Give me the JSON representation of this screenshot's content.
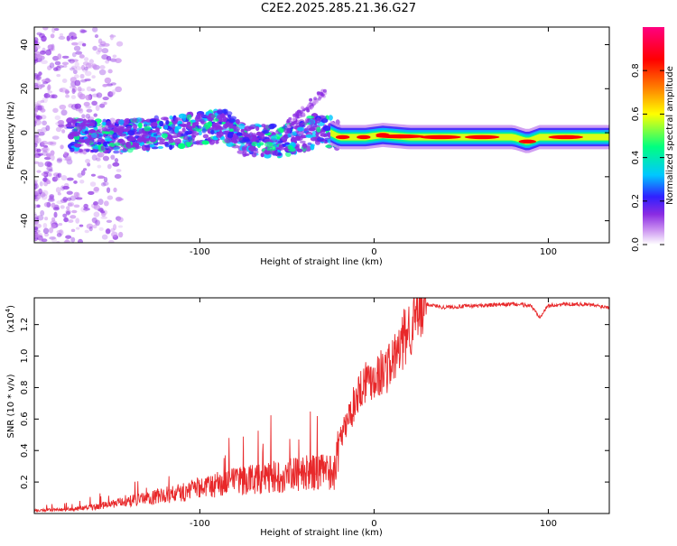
{
  "title": "C2E2.2025.285.21.36.G27",
  "chart_data": [
    {
      "type": "heatmap",
      "xlabel": "Height of straight line (km)",
      "ylabel": "Frequency (Hz)",
      "xlim": [
        -195,
        135
      ],
      "ylim": [
        -50,
        48
      ],
      "x_ticks": [
        -100,
        0,
        100
      ],
      "y_ticks": [
        -40,
        -20,
        0,
        20,
        40
      ],
      "colorbar": {
        "label": "Normalized spectral amplitude",
        "range": [
          0,
          1
        ],
        "ticks": [
          "0.0",
          "0.2",
          "0.4",
          "0.6",
          "0.8"
        ],
        "colors": [
          "#ffffff",
          "#c98ff0",
          "#8a2be2",
          "#3020ff",
          "#00c8ff",
          "#00ff80",
          "#ffff00",
          "#ff8000",
          "#ff0000",
          "#ff0080"
        ]
      },
      "centerline": [
        {
          "x": -195,
          "y": 0
        },
        {
          "x": -150,
          "y": -2
        },
        {
          "x": -120,
          "y": 0
        },
        {
          "x": -100,
          "y": 2
        },
        {
          "x": -85,
          "y": 3
        },
        {
          "x": -75,
          "y": -3
        },
        {
          "x": -55,
          "y": -4
        },
        {
          "x": -40,
          "y": -1
        },
        {
          "x": -30,
          "y": 2
        },
        {
          "x": -20,
          "y": -2
        },
        {
          "x": -5,
          "y": -2
        },
        {
          "x": 5,
          "y": -1
        },
        {
          "x": 20,
          "y": -2
        },
        {
          "x": 80,
          "y": -2
        },
        {
          "x": 88,
          "y": -4
        },
        {
          "x": 95,
          "y": -2
        },
        {
          "x": 135,
          "y": -2
        }
      ]
    },
    {
      "type": "line",
      "xlabel": "Height of straight line (km)",
      "ylabel": "SNR (10 * v/v)",
      "y_multiplier": "(x10",
      "y_multiplier_exp": "4",
      "y_multiplier_close": ")",
      "xlim": [
        -195,
        135
      ],
      "ylim": [
        0,
        13700
      ],
      "x_ticks": [
        -100,
        0,
        100
      ],
      "y_ticks": [
        2000,
        4000,
        6000,
        8000,
        10000,
        12000
      ],
      "y_tick_labels": [
        "0.2",
        "0.4",
        "0.6",
        "0.8",
        "1.0",
        "1.2"
      ],
      "color": "#e8282a",
      "series": [
        {
          "x": [
            -195,
            -180,
            -170,
            -160,
            -150,
            -140,
            -130,
            -120,
            -110,
            -100,
            -90,
            -80,
            -70,
            -60,
            -50,
            -40,
            -30,
            -22,
            -20,
            -15,
            -12,
            -10,
            -5,
            0,
            5,
            10,
            15,
            20,
            25,
            30,
            40,
            60,
            80,
            90,
            95,
            100,
            110,
            120,
            135
          ],
          "y": [
            150,
            200,
            250,
            350,
            500,
            650,
            800,
            950,
            1100,
            1300,
            1500,
            1650,
            1800,
            1900,
            2000,
            2100,
            2150,
            2200,
            4500,
            6000,
            6800,
            7500,
            8500,
            8700,
            9000,
            9500,
            10500,
            11800,
            12700,
            13300,
            13100,
            13200,
            13300,
            13200,
            12500,
            13200,
            13300,
            13300,
            13100
          ]
        }
      ]
    }
  ]
}
